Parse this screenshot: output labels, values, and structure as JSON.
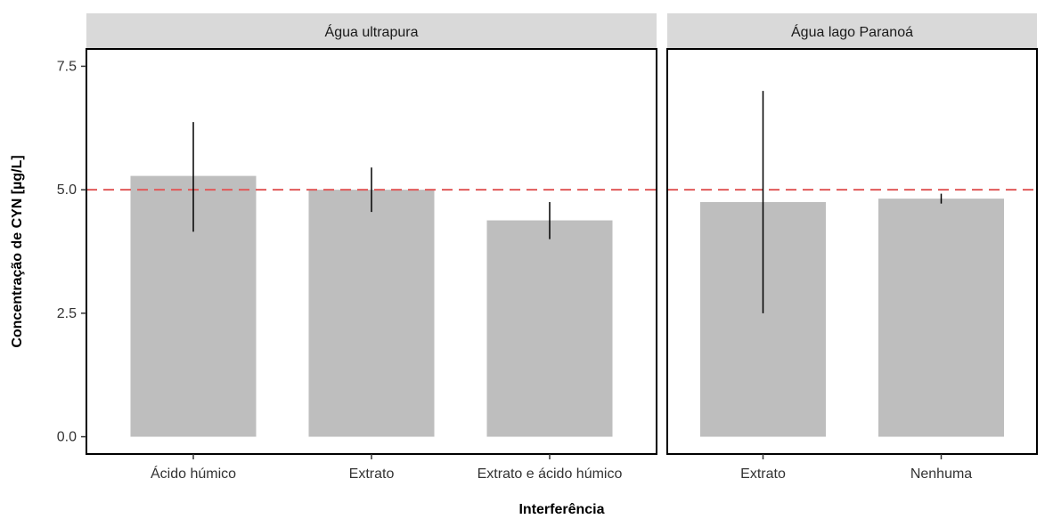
{
  "chart_data": {
    "type": "bar",
    "xlabel": "Interferência",
    "ylabel": "Concentração de CYN [µg/L]",
    "ylim": [
      -0.35,
      7.85
    ],
    "yticks": [
      "0.0",
      "2.5",
      "5.0",
      "7.5"
    ],
    "reference_line": {
      "y": 5.0,
      "color": "#e05a5a",
      "style": "dashed"
    },
    "bar_color": "#bebebe",
    "grid": false,
    "panels": [
      {
        "title": "Água ultrapura",
        "categories": [
          "Ácido húmico",
          "Extrato",
          "Extrato e ácido húmico"
        ],
        "values": [
          5.28,
          5.0,
          4.38
        ],
        "error_low": [
          4.15,
          4.55,
          4.0
        ],
        "error_high": [
          6.37,
          5.45,
          4.75
        ]
      },
      {
        "title": "Água lago Paranoá",
        "categories": [
          "Extrato",
          "Nenhuma"
        ],
        "values": [
          4.75,
          4.82
        ],
        "error_low": [
          2.5,
          4.72
        ],
        "error_high": [
          7.0,
          4.92
        ]
      }
    ]
  }
}
